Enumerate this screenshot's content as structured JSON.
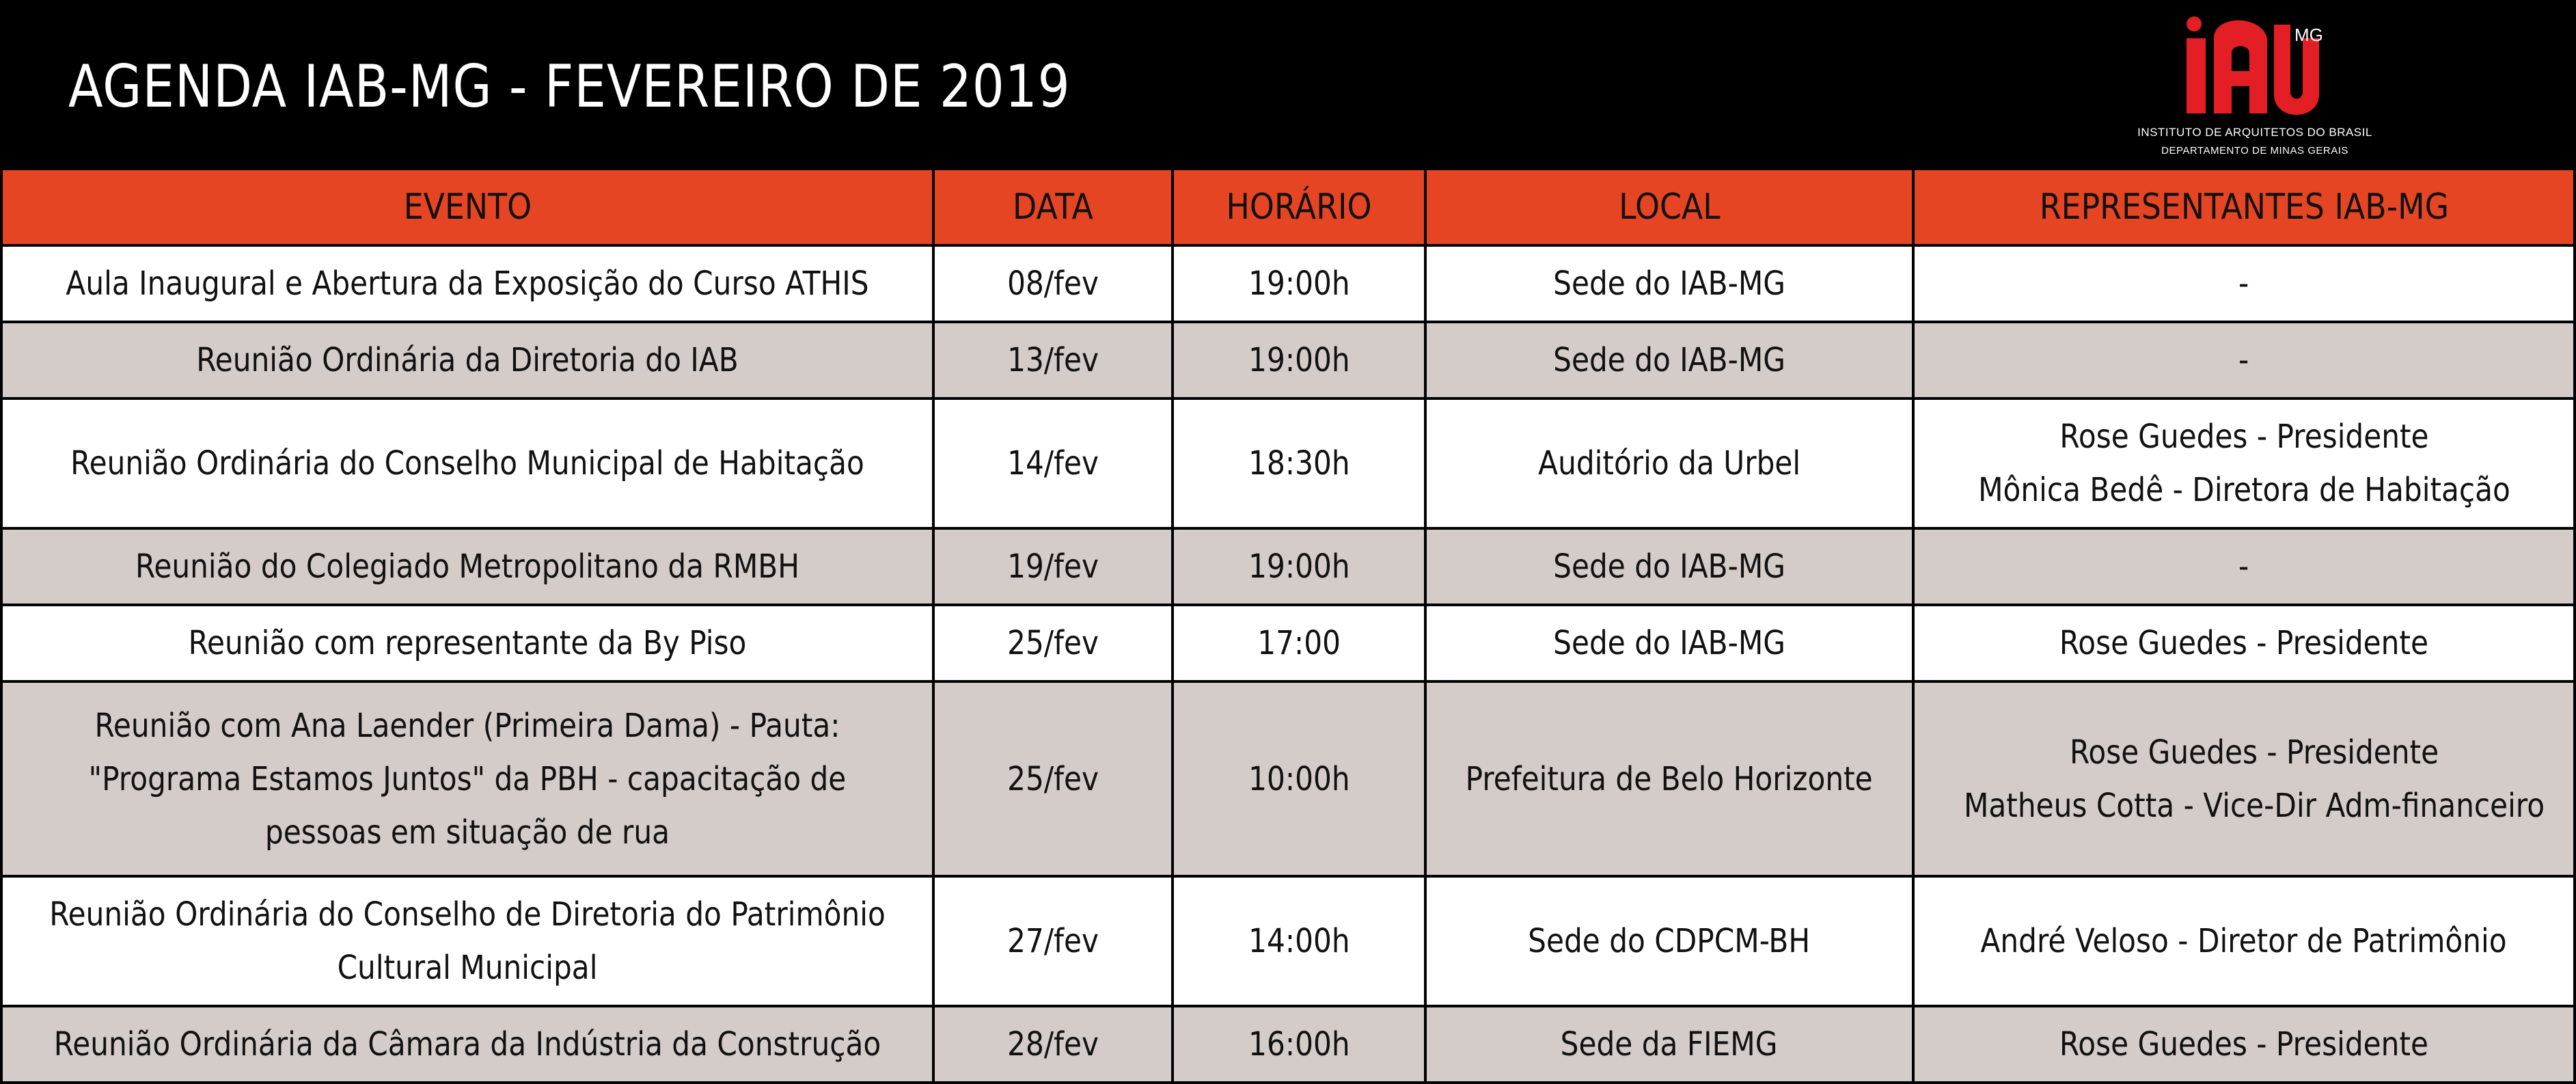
{
  "header": {
    "title": "AGENDA IAB-MG - FEVEREIRO DE 2019",
    "logo": {
      "mark_icon": "iab-logo-icon",
      "superscript": "MG",
      "line1": "INSTITUTO DE ARQUITETOS DO BRASIL",
      "line2": "DEPARTAMENTO DE  MINAS GERAIS",
      "brand_color": "#e31e24"
    }
  },
  "colors": {
    "header_row": "#e64524",
    "row_light": "#ffffff",
    "row_shaded": "#d3ccc8",
    "background": "#000000"
  },
  "table": {
    "columns": [
      "EVENTO",
      "DATA",
      "HORÁRIO",
      "LOCAL",
      "REPRESENTANTES IAB-MG"
    ],
    "rows": [
      {
        "evento": "Aula Inaugural e Abertura da Exposição do Curso ATHIS",
        "data": "08/fev",
        "horario": "19:00h",
        "local": "Sede do IAB-MG",
        "representantes": [
          "-"
        ]
      },
      {
        "evento": "Reunião Ordinária da Diretoria do IAB",
        "data": "13/fev",
        "horario": "19:00h",
        "local": "Sede do IAB-MG",
        "representantes": [
          "-"
        ]
      },
      {
        "evento": "Reunião Ordinária do Conselho Municipal de Habitação",
        "data": "14/fev",
        "horario": "18:30h",
        "local": "Auditório da Urbel",
        "representantes": [
          "Rose Guedes - Presidente",
          "Mônica Bedê - Diretora de Habitação"
        ]
      },
      {
        "evento": "Reunião do Colegiado Metropolitano da RMBH",
        "data": "19/fev",
        "horario": "19:00h",
        "local": "Sede do IAB-MG",
        "representantes": [
          "-"
        ]
      },
      {
        "evento": "Reunião com representante da By Piso",
        "data": "25/fev",
        "horario": "17:00",
        "local": "Sede do IAB-MG",
        "representantes": [
          "Rose Guedes - Presidente"
        ]
      },
      {
        "evento": "Reunião com Ana Laender (Primeira Dama) - Pauta: \"Programa Estamos Juntos\" da PBH - capacitação de pessoas em situação de rua",
        "data": "25/fev",
        "horario": "10:00h",
        "local": "Prefeitura de Belo Horizonte",
        "representantes": [
          "Rose Guedes - Presidente",
          "Matheus Cotta - Vice-Dir Adm-financeiro"
        ]
      },
      {
        "evento": "Reunião Ordinária do Conselho de Diretoria do Patrimônio Cultural Municipal",
        "data": "27/fev",
        "horario": "14:00h",
        "local": "Sede do CDPCM-BH",
        "representantes": [
          "André Veloso - Diretor de Patrimônio"
        ]
      },
      {
        "evento": "Reunião Ordinária da Câmara da Indústria da Construção",
        "data": "28/fev",
        "horario": "16:00h",
        "local": "Sede da FIEMG",
        "representantes": [
          "Rose Guedes - Presidente"
        ]
      }
    ]
  }
}
